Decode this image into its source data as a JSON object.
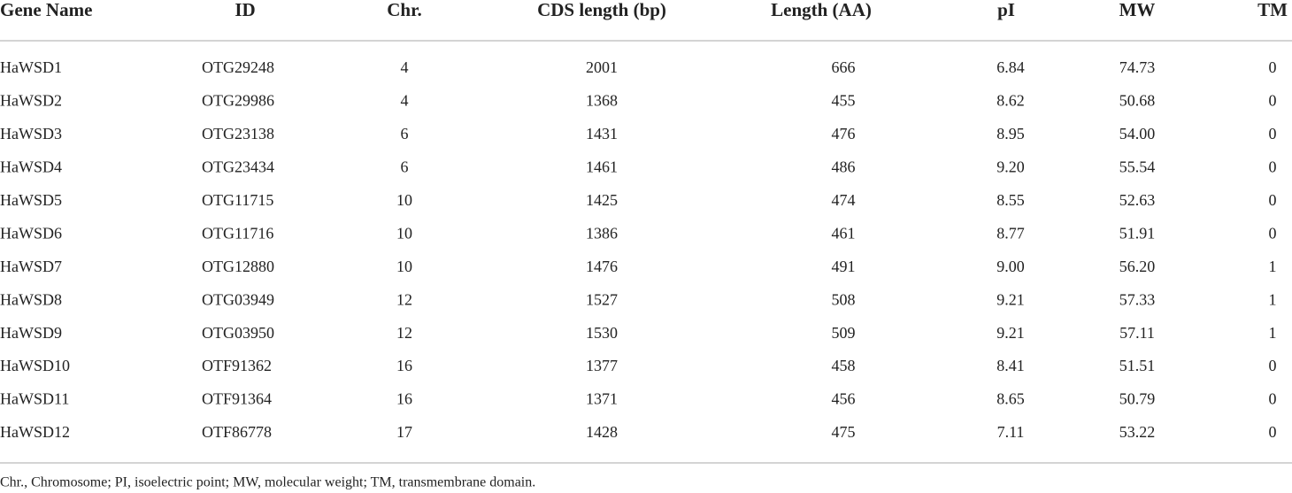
{
  "table": {
    "header": [
      "Gene Name",
      "ID",
      "Chr.",
      "CDS length (bp)",
      "Length (AA)",
      "pI",
      "MW",
      "TM"
    ],
    "rows": [
      [
        "HaWSD1",
        "OTG29248",
        "4",
        "2001",
        "666",
        "6.84",
        "74.73",
        "0"
      ],
      [
        "HaWSD2",
        "OTG29986",
        "4",
        "1368",
        "455",
        "8.62",
        "50.68",
        "0"
      ],
      [
        "HaWSD3",
        "OTG23138",
        "6",
        "1431",
        "476",
        "8.95",
        "54.00",
        "0"
      ],
      [
        "HaWSD4",
        "OTG23434",
        "6",
        "1461",
        "486",
        "9.20",
        "55.54",
        "0"
      ],
      [
        "HaWSD5",
        "OTG11715",
        "10",
        "1425",
        "474",
        "8.55",
        "52.63",
        "0"
      ],
      [
        "HaWSD6",
        "OTG11716",
        "10",
        "1386",
        "461",
        "8.77",
        "51.91",
        "0"
      ],
      [
        "HaWSD7",
        "OTG12880",
        "10",
        "1476",
        "491",
        "9.00",
        "56.20",
        "1"
      ],
      [
        "HaWSD8",
        "OTG03949",
        "12",
        "1527",
        "508",
        "9.21",
        "57.33",
        "1"
      ],
      [
        "HaWSD9",
        "OTG03950",
        "12",
        "1530",
        "509",
        "9.21",
        "57.11",
        "1"
      ],
      [
        "HaWSD10",
        "OTF91362",
        "16",
        "1377",
        "458",
        "8.41",
        "51.51",
        "0"
      ],
      [
        "HaWSD11",
        "OTF91364",
        "16",
        "1371",
        "456",
        "8.65",
        "50.79",
        "0"
      ],
      [
        "HaWSD12",
        "OTF86778",
        "17",
        "1428",
        "475",
        "7.11",
        "53.22",
        "0"
      ]
    ]
  },
  "footnote": "Chr., Chromosome; PI, isoelectric point; MW, molecular weight; TM, transmembrane domain."
}
